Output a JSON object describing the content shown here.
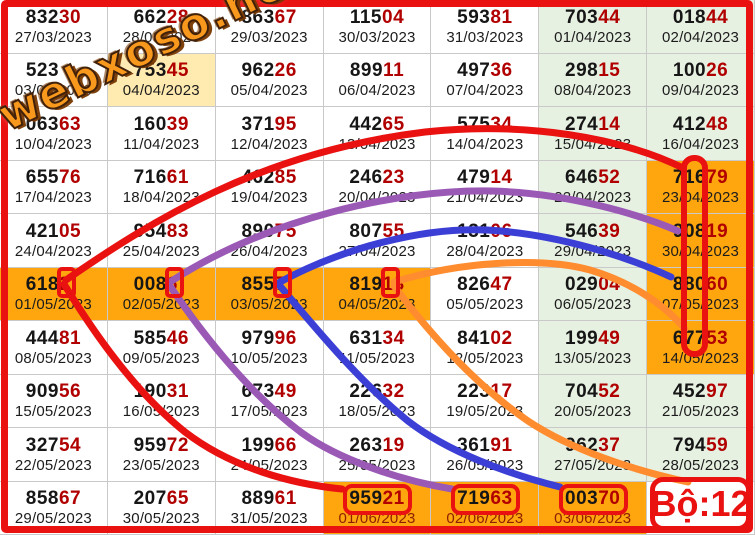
{
  "watermark": "webxoso.net",
  "badge": {
    "label": "Bộ:12"
  },
  "colors": {
    "white_cell": "#ffffff",
    "weekend_green": "#e7f1e2",
    "special_yellow": "#ffeab0",
    "highlight_orange": "#ffa60f",
    "annotation_red": "#ea1111",
    "curve_red": "#ea1111",
    "curve_purple": "#9b59b6",
    "curve_blue": "#3c3fd6",
    "curve_orange": "#ff8c2e",
    "number_prefix": "#161616",
    "number_suffix": "#b10000"
  },
  "chart_data": {
    "type": "table",
    "title": "",
    "note_boxed_digits": [
      "2",
      "6",
      "7",
      "1"
    ],
    "note_boxed_numbers": [
      "95921",
      "71963",
      "00370"
    ],
    "rows": [
      {
        "cells": [
          {
            "n": "83230",
            "d": "27/03/2023",
            "bg": "w"
          },
          {
            "n": "66228",
            "d": "28/03/2023",
            "bg": "w"
          },
          {
            "n": "86367",
            "d": "29/03/2023",
            "bg": "w"
          },
          {
            "n": "11504",
            "d": "30/03/2023",
            "bg": "w"
          },
          {
            "n": "59381",
            "d": "31/03/2023",
            "bg": "w"
          },
          {
            "n": "70344",
            "d": "01/04/2023",
            "bg": "g"
          },
          {
            "n": "01844",
            "d": "02/04/2023",
            "bg": "g"
          }
        ]
      },
      {
        "cells": [
          {
            "n": "523",
            "d": "03/04/2023",
            "bg": "w"
          },
          {
            "n": "75345",
            "d": "04/04/2023",
            "bg": "y"
          },
          {
            "n": "96226",
            "d": "05/04/2023",
            "bg": "w"
          },
          {
            "n": "89911",
            "d": "06/04/2023",
            "bg": "w"
          },
          {
            "n": "49736",
            "d": "07/04/2023",
            "bg": "w"
          },
          {
            "n": "29815",
            "d": "08/04/2023",
            "bg": "g"
          },
          {
            "n": "10026",
            "d": "09/04/2023",
            "bg": "g"
          }
        ]
      },
      {
        "cells": [
          {
            "n": "06363",
            "d": "10/04/2023",
            "bg": "w"
          },
          {
            "n": "16039",
            "d": "11/04/2023",
            "bg": "w"
          },
          {
            "n": "37195",
            "d": "12/04/2023",
            "bg": "w"
          },
          {
            "n": "44265",
            "d": "13/04/2023",
            "bg": "w"
          },
          {
            "n": "57534",
            "d": "14/04/2023",
            "bg": "w"
          },
          {
            "n": "27414",
            "d": "15/04/2023",
            "bg": "g"
          },
          {
            "n": "41248",
            "d": "16/04/2023",
            "bg": "g"
          }
        ]
      },
      {
        "cells": [
          {
            "n": "65576",
            "d": "17/04/2023",
            "bg": "w"
          },
          {
            "n": "71661",
            "d": "18/04/2023",
            "bg": "w"
          },
          {
            "n": "46285",
            "d": "19/04/2023",
            "bg": "w"
          },
          {
            "n": "24623",
            "d": "20/04/2023",
            "bg": "w"
          },
          {
            "n": "47914",
            "d": "21/04/2023",
            "bg": "w"
          },
          {
            "n": "64652",
            "d": "22/04/2023",
            "bg": "g"
          },
          {
            "n": "71679",
            "d": "23/04/2023",
            "bg": "o"
          }
        ]
      },
      {
        "cells": [
          {
            "n": "42105",
            "d": "24/04/2023",
            "bg": "w"
          },
          {
            "n": "95483",
            "d": "25/04/2023",
            "bg": "w"
          },
          {
            "n": "89075",
            "d": "26/04/2023",
            "bg": "w"
          },
          {
            "n": "80755",
            "d": "27/04/2023",
            "bg": "w"
          },
          {
            "n": "13106",
            "d": "28/04/2023",
            "bg": "w"
          },
          {
            "n": "54639",
            "d": "29/04/2023",
            "bg": "g"
          },
          {
            "n": "90819",
            "d": "30/04/2023",
            "bg": "o"
          }
        ]
      },
      {
        "cells": [
          {
            "n": "6182",
            "d": "01/05/2023",
            "bg": "o"
          },
          {
            "n": "0086",
            "d": "02/05/2023",
            "bg": "o"
          },
          {
            "n": "8557",
            "d": "03/05/2023",
            "bg": "o"
          },
          {
            "n": "81913",
            "d": "04/05/2023",
            "bg": "o"
          },
          {
            "n": "82647",
            "d": "05/05/2023",
            "bg": "w"
          },
          {
            "n": "02904",
            "d": "06/05/2023",
            "bg": "g"
          },
          {
            "n": "88060",
            "d": "07/05/2023",
            "bg": "o"
          }
        ]
      },
      {
        "cells": [
          {
            "n": "44481",
            "d": "08/05/2023",
            "bg": "w"
          },
          {
            "n": "58546",
            "d": "09/05/2023",
            "bg": "w"
          },
          {
            "n": "97996",
            "d": "10/05/2023",
            "bg": "w"
          },
          {
            "n": "63134",
            "d": "11/05/2023",
            "bg": "w"
          },
          {
            "n": "84102",
            "d": "12/05/2023",
            "bg": "w"
          },
          {
            "n": "19949",
            "d": "13/05/2023",
            "bg": "g"
          },
          {
            "n": "67753",
            "d": "14/05/2023",
            "bg": "o"
          }
        ]
      },
      {
        "cells": [
          {
            "n": "90956",
            "d": "15/05/2023",
            "bg": "w"
          },
          {
            "n": "19031",
            "d": "16/05/2023",
            "bg": "w"
          },
          {
            "n": "67349",
            "d": "17/05/2023",
            "bg": "w"
          },
          {
            "n": "22632",
            "d": "18/05/2023",
            "bg": "w"
          },
          {
            "n": "22317",
            "d": "19/05/2023",
            "bg": "w"
          },
          {
            "n": "70452",
            "d": "20/05/2023",
            "bg": "g"
          },
          {
            "n": "45297",
            "d": "21/05/2023",
            "bg": "g"
          }
        ]
      },
      {
        "cells": [
          {
            "n": "32754",
            "d": "22/05/2023",
            "bg": "w"
          },
          {
            "n": "95972",
            "d": "23/05/2023",
            "bg": "w"
          },
          {
            "n": "19966",
            "d": "24/05/2023",
            "bg": "w"
          },
          {
            "n": "26319",
            "d": "25/05/2023",
            "bg": "w"
          },
          {
            "n": "36191",
            "d": "26/05/2023",
            "bg": "w"
          },
          {
            "n": "96237",
            "d": "27/05/2023",
            "bg": "g"
          },
          {
            "n": "79459",
            "d": "28/05/2023",
            "bg": "g"
          }
        ]
      },
      {
        "cells": [
          {
            "n": "85867",
            "d": "29/05/2023",
            "bg": "w"
          },
          {
            "n": "20765",
            "d": "30/05/2023",
            "bg": "w"
          },
          {
            "n": "88961",
            "d": "31/05/2023",
            "bg": "w"
          },
          {
            "n": "95921",
            "d": "01/06/2023",
            "bg": "o",
            "dr": true
          },
          {
            "n": "71963",
            "d": "02/06/2023",
            "bg": "o",
            "dr": true
          },
          {
            "n": "00370",
            "d": "03/06/2023",
            "bg": "o",
            "dr": true
          },
          {
            "type": "badge"
          }
        ]
      }
    ]
  }
}
